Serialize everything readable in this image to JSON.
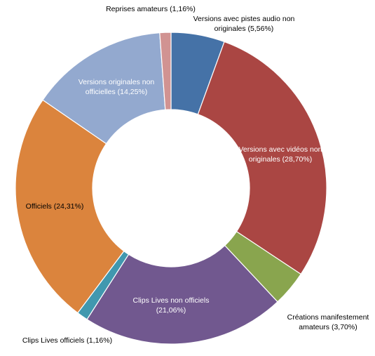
{
  "chart_data": {
    "type": "pie",
    "variant": "donut",
    "title": "",
    "slices": [
      {
        "label_lines": [
          "Versions avec pistes audio non",
          "originales (5,56%)"
        ],
        "value": 5.56,
        "color": "#4572a7",
        "label_color": "#000000"
      },
      {
        "label_lines": [
          "Versions avec vidéos non",
          "originales (28,70%)"
        ],
        "value": 28.7,
        "color": "#aa4643",
        "label_color": "#ffffff"
      },
      {
        "label_lines": [
          "Créations manifestement",
          "amateurs (3,70%)"
        ],
        "value": 3.7,
        "color": "#89a54e",
        "label_color": "#000000"
      },
      {
        "label_lines": [
          "Clips Lives non officiels",
          "(21,06%)"
        ],
        "value": 21.06,
        "color": "#71588f",
        "label_color": "#ffffff"
      },
      {
        "label_lines": [
          "Clips Lives officiels (1,16%)"
        ],
        "value": 1.16,
        "color": "#4198af",
        "label_color": "#000000"
      },
      {
        "label_lines": [
          "Officiels (24,31%)"
        ],
        "value": 24.31,
        "color": "#db843d",
        "label_color": "#000000"
      },
      {
        "label_lines": [
          "Versions originales non",
          "officielles (14,25%)"
        ],
        "value": 14.25,
        "color": "#93a9cf",
        "label_color": "#ffffff"
      },
      {
        "label_lines": [
          "Reprises amateurs (1,16%)"
        ],
        "value": 1.16,
        "color": "#d19392",
        "label_color": "#000000"
      }
    ],
    "start": "12 o'clock",
    "direction": "clockwise",
    "legend": "none"
  }
}
